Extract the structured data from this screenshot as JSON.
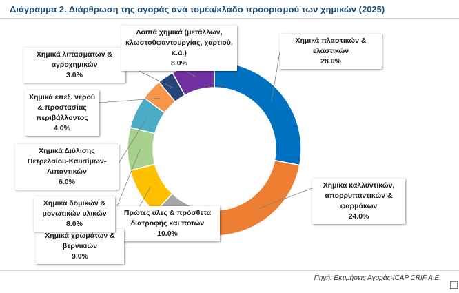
{
  "title": "Διάγραμμα 2. Διάρθρωση της αγοράς ανά τομέα/κλάδο προορισμού των χημικών (2025)",
  "source": "Πηγή: Εκτιμήσεις Αγοράς-ICAP CRIF A.E.",
  "chart_data": {
    "type": "pie",
    "subtype": "donut",
    "unit": "%",
    "slices": [
      {
        "label": "Χημικά πλαστικών & ελαστικών",
        "value": 28.0,
        "value_text": "28.0%",
        "color": "#0070c0"
      },
      {
        "label": "Χημικά καλλυντικών, απορρυπαντικών & φαρμάκων",
        "value": 24.0,
        "value_text": "24.0%",
        "color": "#ed7d31"
      },
      {
        "label": "Πρώτες ύλες & πρόσθετα διατροφής και ποτών",
        "value": 10.0,
        "value_text": "10.0%",
        "color": "#a5a5a5"
      },
      {
        "label": "Χημικά χρωμάτων & βερνικιών",
        "value": 9.0,
        "value_text": "9.0%",
        "color": "#ffc000"
      },
      {
        "label": "Χημικά δομικών & μονωτικών υλικών",
        "value": 8.0,
        "value_text": "8.0%",
        "color": "#a9d18e"
      },
      {
        "label": "Χημικά Διύλισης Πετρελαίου-Καυσίμων-Λιπαντικών",
        "value": 6.0,
        "value_text": "6.0%",
        "color": "#4bacc6"
      },
      {
        "label": "Χημικά επεξ. νερού & προστασίας περιβάλλοντος",
        "value": 4.0,
        "value_text": "4.0%",
        "color": "#f79646"
      },
      {
        "label": "Χημικά λιπασμάτων & αγροχημικών",
        "value": 3.0,
        "value_text": "3.0%",
        "color": "#264478"
      },
      {
        "label": "Λοιπά χημικά (μετάλλων, κλωστοϋφαντουργίας, χαρτιού, κ.ά.)",
        "value": 8.0,
        "value_text": "8.0%",
        "color": "#7030a0"
      }
    ]
  }
}
